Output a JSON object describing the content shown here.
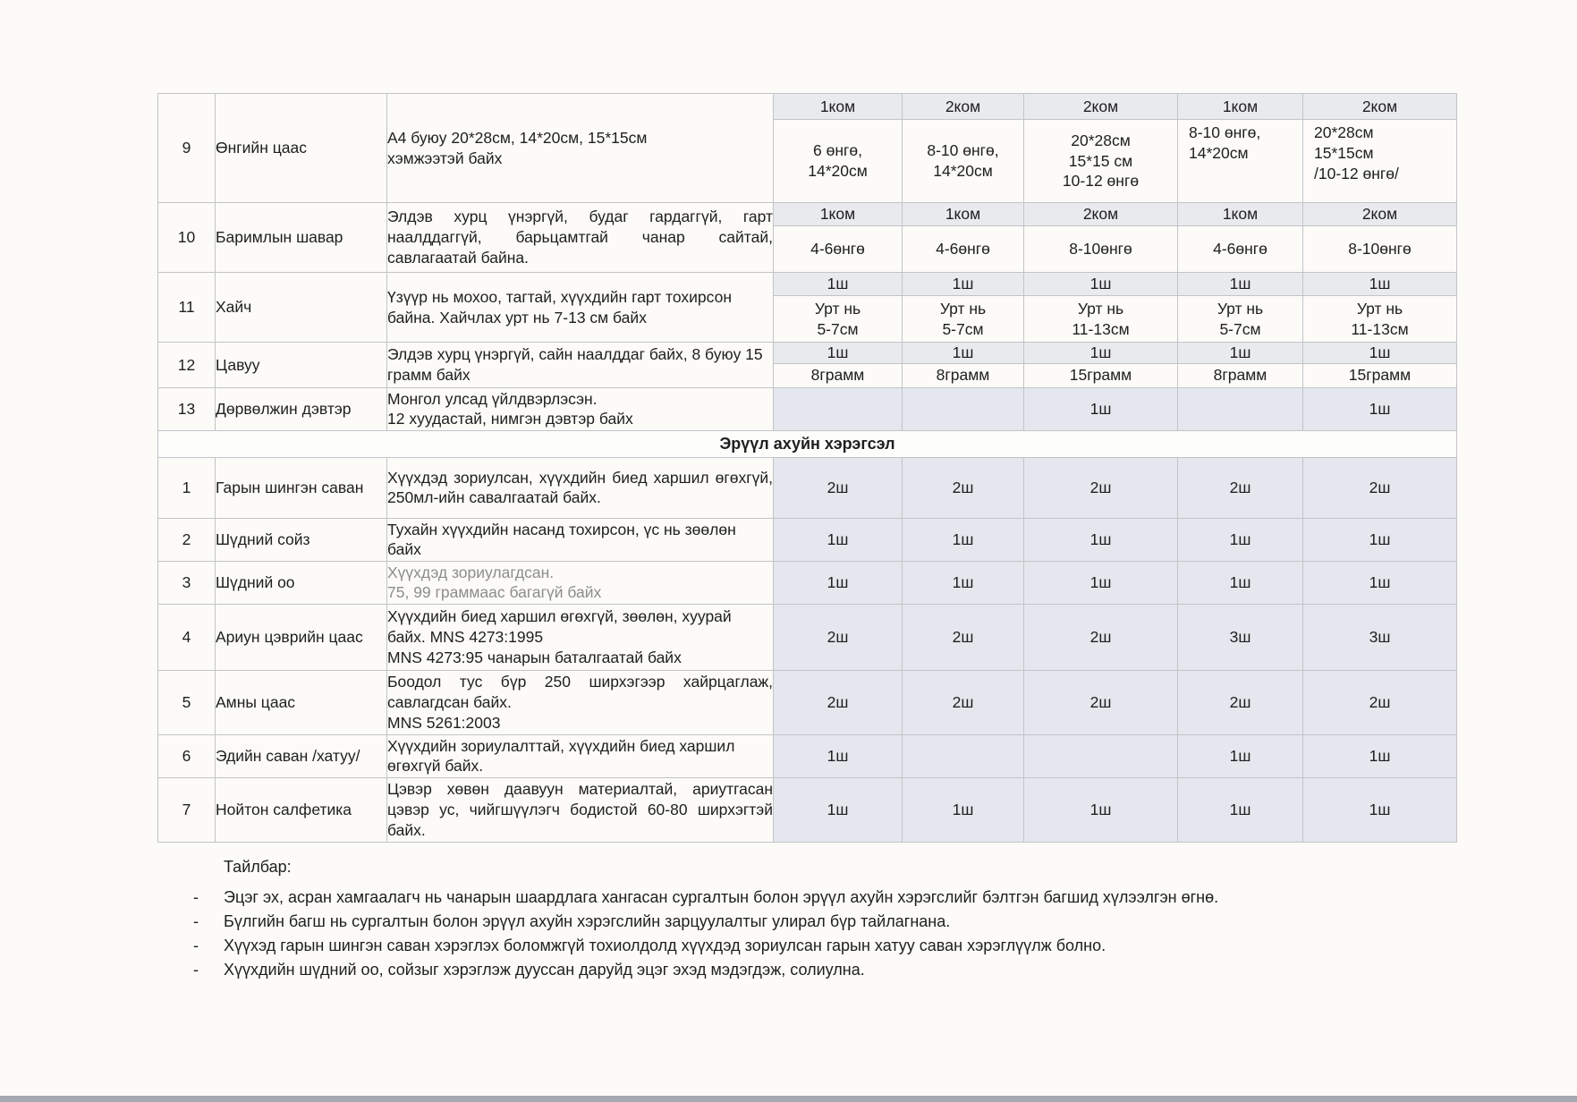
{
  "colors": {
    "page_bg": "#fcfbf8",
    "grid_border": "#c3c4c8",
    "strip_bg": "#e9eaed",
    "hygiene_qty_bg": "#e4e7ee",
    "gray_text": "#8d8d8d",
    "scan_edge": "#a3a8b3"
  },
  "table": {
    "stationery_rows": [
      {
        "no": "9",
        "name": "Өнгийн цаас",
        "desc": "A4 буюу 20*28см, 14*20см, 15*15см\nхэмжээтэй байх",
        "qty_head": [
          "1ком",
          "2ком",
          "2ком",
          "1ком",
          "2ком"
        ],
        "qty_vals": [
          "6 өнгө,\n14*20см",
          "8-10 өнгө,\n14*20см",
          "20*28см\n15*15 см\n10-12 өнгө",
          "8-10 өнгө,\n14*20см",
          "20*28см\n15*15см\n/10-12 өнгө/"
        ]
      },
      {
        "no": "10",
        "name": "Баримлын шавар",
        "desc": "Элдэв хурц үнэргүй, будаг гардаггүй, гарт наалддаггүй, барьцамтгай чанар сайтай, савлагаатай байна.",
        "justify": true,
        "qty_head": [
          "1ком",
          "1ком",
          "2ком",
          "1ком",
          "2ком"
        ],
        "qty_vals": [
          "4-6өнгө",
          "4-6өнгө",
          "8-10өнгө",
          "4-6өнгө",
          "8-10өнгө"
        ]
      },
      {
        "no": "11",
        "name": "Хайч",
        "desc": "Үзүүр нь мохоо, тагтай, хүүхдийн гарт тохирсон байна. Хайчлах урт нь 7-13 см байх",
        "qty_head": [
          "1ш",
          "1ш",
          "1ш",
          "1ш",
          "1ш"
        ],
        "qty_vals": [
          "Урт нь\n5-7см",
          "Урт нь\n5-7см",
          "Урт нь\n11-13см",
          "Урт нь\n5-7см",
          "Урт нь\n11-13см"
        ]
      },
      {
        "no": "12",
        "name": "Цавуу",
        "desc": "Элдэв хурц үнэргүй, сайн наалддаг байх, 8 буюу 15 грамм байх",
        "qty_head": [
          "1ш",
          "1ш",
          "1ш",
          "1ш",
          "1ш"
        ],
        "qty_vals": [
          "8грамм",
          "8грамм",
          "15грамм",
          "8грамм",
          "15грамм"
        ]
      },
      {
        "no": "13",
        "name": "Дөрвөлжин дэвтэр",
        "desc": "Монгол улсад үйлдвэрлэсэн.\n12 хуудастай, нимгэн дэвтэр байх",
        "qty_single": [
          "",
          "",
          "1ш",
          "",
          "1ш"
        ]
      }
    ],
    "section_header": "Эрүүл ахуйн хэрэгсэл",
    "hygiene_rows": [
      {
        "no": "1",
        "name": "Гарын шингэн саван",
        "desc": "Хүүхдэд зориулсан, хүүхдийн биед харшил өгөхгүй, 250мл-ийн савалгаатай байх.",
        "justify": true,
        "qty": [
          "2ш",
          "2ш",
          "2ш",
          "2ш",
          "2ш"
        ]
      },
      {
        "no": "2",
        "name": "Шүдний сойз",
        "desc": "Тухайн хүүхдийн насанд тохирсон, үс нь зөөлөн байх",
        "qty": [
          "1ш",
          "1ш",
          "1ш",
          "1ш",
          "1ш"
        ]
      },
      {
        "no": "3",
        "name": "Шүдний оо",
        "desc": "Хүүхдэд зориулагдсан.\n75, 99 граммаас багагүй байх",
        "gray": true,
        "qty": [
          "1ш",
          "1ш",
          "1ш",
          "1ш",
          "1ш"
        ]
      },
      {
        "no": "4",
        "name": "Ариун цэврийн цаас",
        "desc": "Хүүхдийн биед харшил өгөхгүй,  зөөлөн, хуурай байх. MNS 4273:1995\nMNS 4273:95 чанарын  баталгаатай байх",
        "qty": [
          "2ш",
          "2ш",
          "2ш",
          "3ш",
          "3ш"
        ]
      },
      {
        "no": "5",
        "name": "Амны цаас",
        "desc": "Боодол тус бүр 250 ширхэгээр хайрцаглаж, савлагдсан байх.\nMNS 5261:2003",
        "justify": true,
        "qty": [
          "2ш",
          "2ш",
          "2ш",
          "2ш",
          "2ш"
        ]
      },
      {
        "no": "6",
        "name": "Эдийн саван /хатуу/",
        "desc": "Хүүхдийн зориулалттай, хүүхдийн биед харшил өгөхгүй байх.",
        "qty": [
          "1ш",
          "",
          "",
          "1ш",
          "1ш"
        ]
      },
      {
        "no": "7",
        "name": "Нойтон салфетика",
        "desc": "Цэвэр хөвөн даавуун материалтай, ариутгасан цэвэр ус, чийгшүүлэгч бодистой 60-80 ширхэгтэй байх.",
        "justify": true,
        "qty": [
          "1ш",
          "1ш",
          "1ш",
          "1ш",
          "1ш"
        ]
      }
    ]
  },
  "notes": {
    "title": "Тайлбар:",
    "items": [
      "Эцэг эх, асран хамгаалагч нь чанарын шаардлага хангасан сургалтын болон эрүүл ахуйн хэрэгслийг бэлтгэн багшид хүлээлгэн өгнө.",
      "Бүлгийн багш нь сургалтын болон эрүүл ахуйн хэрэгслийн зарцуулалтыг улирал бүр тайлагнана.",
      "Хүүхэд гарын шингэн саван хэрэглэх боломжгүй тохиолдолд хүүхдэд зориулсан гарын хатуу саван хэрэглүүлж болно.",
      "Хүүхдийн шүдний оо, сойзыг хэрэглэж дууссан даруйд эцэг эхэд мэдэгдэж, солиулна."
    ]
  }
}
